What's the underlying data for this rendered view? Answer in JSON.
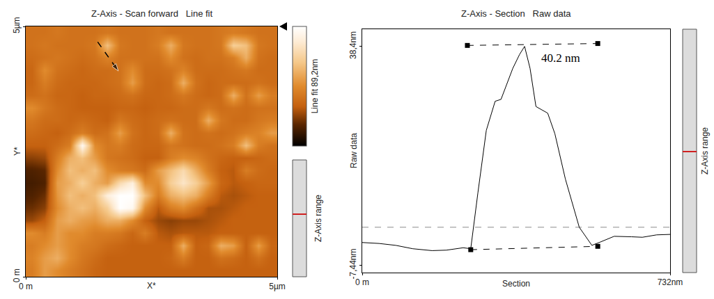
{
  "chart_data": [
    {
      "type": "heatmap",
      "title": "Z-Axis - Scan forward   Line fit",
      "x_label": "X*",
      "y_label": "Y*",
      "xlim": [
        0,
        5
      ],
      "ylim": [
        0,
        5
      ],
      "xticks": [
        {
          "value": 0,
          "label": "0 m"
        },
        {
          "value": 5,
          "label": "5µm"
        }
      ],
      "yticks": [
        {
          "value": 0,
          "label": "0 m"
        },
        {
          "value": 5,
          "label": "5µm"
        }
      ],
      "x": [
        0.125,
        0.375,
        0.625,
        0.875,
        1.125,
        1.375,
        1.625,
        1.875,
        2.125,
        2.375,
        2.625,
        2.875,
        3.125,
        3.375,
        3.625,
        3.875,
        4.125,
        4.375,
        4.625,
        4.875
      ],
      "y": [
        4.875,
        4.625,
        4.375,
        4.125,
        3.875,
        3.625,
        3.375,
        3.125,
        2.875,
        2.625,
        2.375,
        2.125,
        1.875,
        1.625,
        1.375,
        1.125,
        0.875,
        0.625,
        0.375,
        0.125
      ],
      "z": [
        [
          36,
          36,
          38,
          36,
          36,
          36,
          38,
          36,
          36,
          36,
          38,
          36,
          36,
          36,
          36,
          38,
          40,
          38,
          36,
          36
        ],
        [
          36,
          38,
          36,
          36,
          36,
          38,
          60,
          38,
          36,
          36,
          40,
          55,
          38,
          36,
          36,
          38,
          65,
          60,
          38,
          36
        ],
        [
          34,
          36,
          38,
          36,
          34,
          36,
          42,
          36,
          36,
          36,
          36,
          45,
          36,
          34,
          36,
          36,
          40,
          55,
          36,
          34
        ],
        [
          32,
          45,
          36,
          34,
          32,
          34,
          34,
          36,
          45,
          34,
          34,
          36,
          42,
          34,
          34,
          34,
          36,
          38,
          34,
          34
        ],
        [
          32,
          40,
          34,
          32,
          32,
          32,
          34,
          36,
          50,
          34,
          32,
          34,
          55,
          36,
          32,
          34,
          34,
          34,
          36,
          34
        ],
        [
          34,
          36,
          32,
          32,
          30,
          32,
          32,
          34,
          36,
          32,
          32,
          34,
          38,
          34,
          32,
          34,
          55,
          36,
          50,
          40
        ],
        [
          45,
          38,
          34,
          32,
          30,
          30,
          30,
          32,
          32,
          30,
          32,
          32,
          34,
          34,
          38,
          34,
          36,
          34,
          36,
          36
        ],
        [
          38,
          34,
          34,
          32,
          34,
          32,
          30,
          38,
          34,
          32,
          34,
          36,
          34,
          34,
          55,
          38,
          34,
          34,
          38,
          40
        ],
        [
          34,
          32,
          30,
          34,
          40,
          34,
          36,
          50,
          36,
          32,
          34,
          55,
          36,
          34,
          36,
          34,
          36,
          40,
          42,
          50
        ],
        [
          30,
          30,
          34,
          40,
          85,
          45,
          38,
          40,
          34,
          32,
          32,
          38,
          36,
          34,
          34,
          36,
          40,
          60,
          40,
          36
        ],
        [
          22,
          24,
          40,
          55,
          60,
          50,
          38,
          36,
          34,
          30,
          30,
          40,
          45,
          42,
          36,
          32,
          30,
          30,
          32,
          34
        ],
        [
          14,
          16,
          45,
          60,
          55,
          60,
          45,
          40,
          38,
          34,
          50,
          60,
          70,
          55,
          40,
          30,
          28,
          40,
          34,
          32
        ],
        [
          12,
          14,
          50,
          55,
          65,
          55,
          50,
          70,
          80,
          45,
          45,
          65,
          75,
          65,
          50,
          32,
          28,
          30,
          32,
          32
        ],
        [
          14,
          18,
          48,
          60,
          55,
          60,
          80,
          89,
          89,
          60,
          40,
          55,
          60,
          55,
          40,
          28,
          26,
          28,
          30,
          30
        ],
        [
          18,
          22,
          45,
          55,
          60,
          55,
          65,
          89,
          85,
          45,
          28,
          40,
          45,
          35,
          26,
          26,
          28,
          30,
          30,
          30
        ],
        [
          24,
          30,
          50,
          55,
          50,
          48,
          55,
          55,
          45,
          30,
          24,
          22,
          24,
          24,
          26,
          28,
          30,
          30,
          30,
          30
        ],
        [
          45,
          40,
          50,
          45,
          45,
          40,
          40,
          38,
          32,
          40,
          28,
          26,
          28,
          28,
          28,
          30,
          30,
          30,
          30,
          30
        ],
        [
          40,
          45,
          50,
          45,
          40,
          38,
          34,
          32,
          30,
          30,
          30,
          30,
          55,
          30,
          32,
          55,
          50,
          30,
          50,
          32
        ],
        [
          42,
          50,
          55,
          45,
          38,
          34,
          30,
          30,
          30,
          30,
          30,
          32,
          40,
          30,
          30,
          36,
          34,
          30,
          36,
          30
        ],
        [
          40,
          50,
          45,
          40,
          36,
          32,
          30,
          30,
          30,
          30,
          30,
          30,
          30,
          30,
          30,
          30,
          30,
          30,
          30,
          30
        ]
      ],
      "zlim": [
        0,
        89.2
      ],
      "colorbar_label": "Line fit 89,2nm",
      "range_label": "Z-Axis range",
      "section_line": {
        "x": [
          1.43,
          1.84
        ],
        "y": [
          4.69,
          4.11
        ]
      }
    },
    {
      "type": "line",
      "title": "Z-Axis - Section   Raw data",
      "x_label": "Section",
      "y_label": "Raw data",
      "xlim": [
        0,
        732
      ],
      "ylim": [
        -9,
        42
      ],
      "xticks": [
        {
          "value": 0,
          "label": "0 m"
        },
        {
          "value": 732,
          "label": "732nm"
        }
      ],
      "yticks": [
        {
          "value": 38.4,
          "label": "38,4nm"
        },
        {
          "value": -7.44,
          "label": "-7,44nm"
        }
      ],
      "x": [
        0,
        40,
        80,
        120,
        166,
        200,
        240,
        258,
        275,
        295,
        316,
        330,
        358,
        374,
        386,
        399,
        413,
        441,
        458,
        483,
        516,
        546,
        566,
        599,
        640,
        666,
        700,
        732
      ],
      "values": [
        -2.7,
        -2.9,
        -3.3,
        -4.0,
        -4.4,
        -4.3,
        -3.8,
        -4.0,
        7.7,
        20.8,
        26.9,
        27.3,
        33.8,
        36.7,
        38.4,
        33.8,
        25.8,
        24.4,
        20.1,
        10.6,
        0.5,
        -3.3,
        -2.6,
        -1.4,
        -1.5,
        -1.6,
        -1.1,
        -1.0
      ],
      "reference_line": 0.5,
      "markers": [
        {
          "x": [
            250,
            560
          ],
          "y": [
            38.6,
            39.0
          ]
        },
        {
          "x": [
            258,
            560
          ],
          "y": [
            -4.2,
            -3.5
          ]
        }
      ],
      "annotation": "40.2 nm",
      "range_label": "Z-Axis range"
    }
  ]
}
